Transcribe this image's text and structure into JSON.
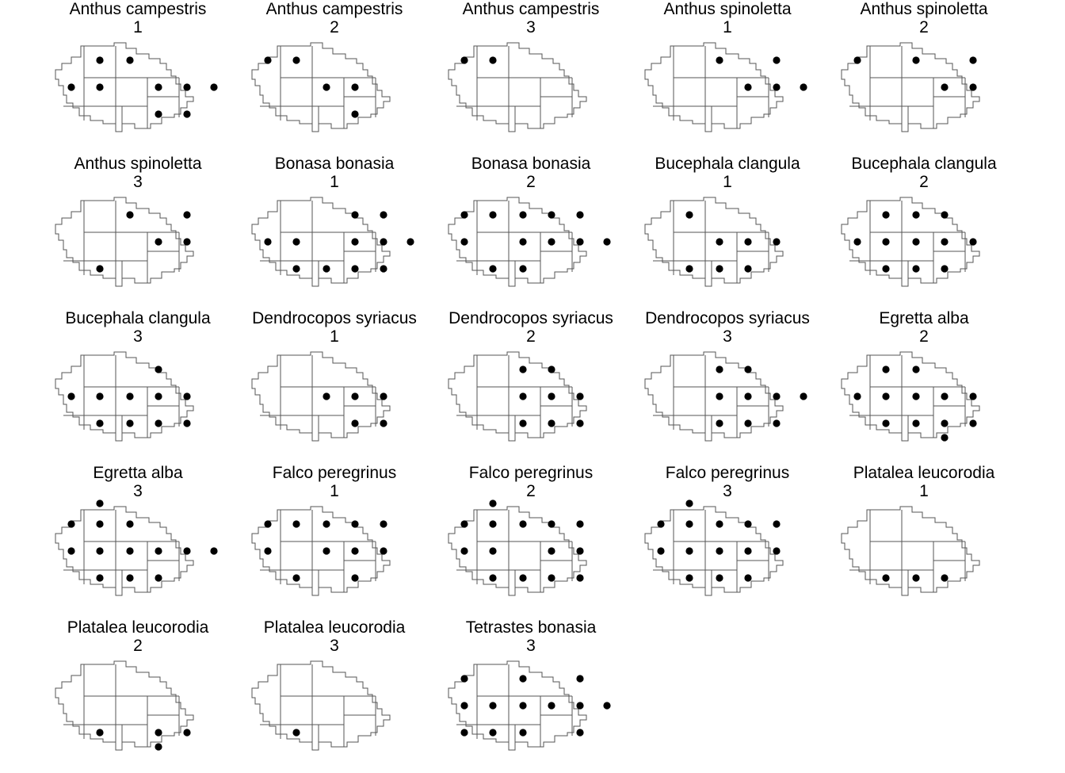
{
  "panels": [
    {
      "species": "Anthus campestris",
      "period": "1",
      "dots": [
        [
          2,
          1
        ],
        [
          3,
          1
        ],
        [
          2,
          2
        ],
        [
          1,
          2
        ],
        [
          4,
          2
        ],
        [
          5,
          2
        ],
        [
          6,
          2
        ],
        [
          4,
          3
        ],
        [
          5,
          3
        ]
      ]
    },
    {
      "species": "Anthus campestris",
      "period": "2",
      "dots": [
        [
          2,
          1
        ],
        [
          1,
          1
        ],
        [
          3,
          2
        ],
        [
          4,
          2
        ],
        [
          4,
          3
        ]
      ]
    },
    {
      "species": "Anthus campestris",
      "period": "3",
      "dots": [
        [
          2,
          1
        ],
        [
          1,
          1
        ]
      ]
    },
    {
      "species": "Anthus spinoletta",
      "period": "1",
      "dots": [
        [
          3,
          1
        ],
        [
          4,
          2
        ],
        [
          5,
          1
        ],
        [
          5,
          2
        ],
        [
          6,
          2
        ]
      ]
    },
    {
      "species": "Anthus spinoletta",
      "period": "2",
      "dots": [
        [
          1,
          1
        ],
        [
          3,
          1
        ],
        [
          4,
          2
        ],
        [
          5,
          1
        ],
        [
          5,
          2
        ]
      ]
    },
    {
      "species": "Anthus spinoletta",
      "period": "3",
      "dots": [
        [
          3,
          1
        ],
        [
          4,
          2
        ],
        [
          5,
          1
        ],
        [
          5,
          2
        ],
        [
          2,
          3
        ]
      ]
    },
    {
      "species": "Bonasa bonasia",
      "period": "1",
      "dots": [
        [
          4,
          1
        ],
        [
          1,
          2
        ],
        [
          2,
          2
        ],
        [
          4,
          2
        ],
        [
          5,
          1
        ],
        [
          5,
          2
        ],
        [
          6,
          2
        ],
        [
          2,
          3
        ],
        [
          3,
          3
        ],
        [
          4,
          3
        ],
        [
          5,
          3
        ]
      ]
    },
    {
      "species": "Bonasa bonasia",
      "period": "2",
      "dots": [
        [
          2,
          1
        ],
        [
          3,
          1
        ],
        [
          4,
          1
        ],
        [
          1,
          1
        ],
        [
          1,
          2
        ],
        [
          3,
          2
        ],
        [
          4,
          2
        ],
        [
          5,
          1
        ],
        [
          5,
          2
        ],
        [
          6,
          2
        ],
        [
          2,
          3
        ],
        [
          3,
          3
        ]
      ]
    },
    {
      "species": "Bucephala clangula",
      "period": "1",
      "dots": [
        [
          2,
          1
        ],
        [
          3,
          2
        ],
        [
          4,
          2
        ],
        [
          5,
          2
        ],
        [
          2,
          3
        ],
        [
          3,
          3
        ],
        [
          4,
          3
        ]
      ]
    },
    {
      "species": "Bucephala clangula",
      "period": "2",
      "dots": [
        [
          2,
          1
        ],
        [
          3,
          1
        ],
        [
          4,
          1
        ],
        [
          1,
          2
        ],
        [
          2,
          2
        ],
        [
          3,
          2
        ],
        [
          4,
          2
        ],
        [
          5,
          2
        ],
        [
          2,
          3
        ],
        [
          3,
          3
        ],
        [
          4,
          3
        ]
      ]
    },
    {
      "species": "Bucephala clangula",
      "period": "3",
      "dots": [
        [
          4,
          1
        ],
        [
          1,
          2
        ],
        [
          2,
          2
        ],
        [
          3,
          2
        ],
        [
          4,
          2
        ],
        [
          5,
          2
        ],
        [
          2,
          3
        ],
        [
          3,
          3
        ],
        [
          4,
          3
        ],
        [
          5,
          3
        ]
      ]
    },
    {
      "species": "Dendrocopos syriacus",
      "period": "1",
      "dots": [
        [
          3,
          2
        ],
        [
          4,
          2
        ],
        [
          5,
          2
        ],
        [
          4,
          3
        ],
        [
          5,
          3
        ]
      ]
    },
    {
      "species": "Dendrocopos syriacus",
      "period": "2",
      "dots": [
        [
          3,
          1
        ],
        [
          4,
          1
        ],
        [
          3,
          2
        ],
        [
          4,
          2
        ],
        [
          5,
          2
        ],
        [
          3,
          3
        ],
        [
          4,
          3
        ],
        [
          5,
          3
        ]
      ]
    },
    {
      "species": "Dendrocopos syriacus",
      "period": "3",
      "dots": [
        [
          3,
          1
        ],
        [
          4,
          1
        ],
        [
          3,
          2
        ],
        [
          4,
          2
        ],
        [
          5,
          2
        ],
        [
          6,
          2
        ],
        [
          3,
          3
        ],
        [
          4,
          3
        ],
        [
          5,
          3
        ]
      ]
    },
    {
      "species": "Egretta alba",
      "period": "2",
      "dots": [
        [
          2,
          1
        ],
        [
          3,
          1
        ],
        [
          1,
          2
        ],
        [
          2,
          2
        ],
        [
          3,
          2
        ],
        [
          4,
          2
        ],
        [
          5,
          2
        ],
        [
          2,
          3
        ],
        [
          3,
          3
        ],
        [
          4,
          3
        ],
        [
          5,
          3
        ],
        [
          4,
          4
        ]
      ]
    },
    {
      "species": "Egretta alba",
      "period": "3",
      "dots": [
        [
          2,
          0
        ],
        [
          2,
          1
        ],
        [
          3,
          1
        ],
        [
          1,
          1
        ],
        [
          1,
          2
        ],
        [
          2,
          2
        ],
        [
          3,
          2
        ],
        [
          4,
          2
        ],
        [
          5,
          2
        ],
        [
          6,
          2
        ],
        [
          2,
          3
        ],
        [
          3,
          3
        ],
        [
          4,
          3
        ]
      ]
    },
    {
      "species": "Falco peregrinus",
      "period": "1",
      "dots": [
        [
          2,
          1
        ],
        [
          3,
          1
        ],
        [
          4,
          1
        ],
        [
          1,
          1
        ],
        [
          1,
          2
        ],
        [
          3,
          2
        ],
        [
          4,
          2
        ],
        [
          5,
          1
        ],
        [
          5,
          2
        ],
        [
          2,
          3
        ],
        [
          4,
          3
        ]
      ]
    },
    {
      "species": "Falco peregrinus",
      "period": "2",
      "dots": [
        [
          2,
          0
        ],
        [
          2,
          1
        ],
        [
          3,
          1
        ],
        [
          4,
          1
        ],
        [
          1,
          1
        ],
        [
          1,
          2
        ],
        [
          2,
          2
        ],
        [
          4,
          2
        ],
        [
          5,
          1
        ],
        [
          5,
          2
        ],
        [
          2,
          3
        ],
        [
          3,
          3
        ],
        [
          4,
          3
        ],
        [
          5,
          3
        ]
      ]
    },
    {
      "species": "Falco peregrinus",
      "period": "3",
      "dots": [
        [
          2,
          0
        ],
        [
          2,
          1
        ],
        [
          3,
          1
        ],
        [
          4,
          1
        ],
        [
          1,
          1
        ],
        [
          1,
          2
        ],
        [
          2,
          2
        ],
        [
          3,
          2
        ],
        [
          4,
          2
        ],
        [
          5,
          1
        ],
        [
          5,
          2
        ],
        [
          2,
          3
        ],
        [
          3,
          3
        ],
        [
          4,
          3
        ]
      ]
    },
    {
      "species": "Platalea leucorodia",
      "period": "1",
      "dots": [
        [
          2,
          3
        ],
        [
          3,
          3
        ],
        [
          4,
          3
        ]
      ]
    },
    {
      "species": "Platalea leucorodia",
      "period": "2",
      "dots": [
        [
          2,
          3
        ],
        [
          4,
          3
        ],
        [
          5,
          3
        ],
        [
          4,
          4
        ]
      ]
    },
    {
      "species": "Platalea leucorodia",
      "period": "3",
      "dots": [
        [
          2,
          3
        ]
      ]
    },
    {
      "species": "Tetrastes bonasia",
      "period": "3",
      "dots": [
        [
          3,
          1
        ],
        [
          1,
          1
        ],
        [
          1,
          2
        ],
        [
          2,
          2
        ],
        [
          3,
          2
        ],
        [
          4,
          2
        ],
        [
          5,
          1
        ],
        [
          5,
          2
        ],
        [
          6,
          2
        ],
        [
          1,
          3
        ],
        [
          2,
          3
        ],
        [
          3,
          3
        ],
        [
          5,
          3
        ]
      ]
    }
  ]
}
